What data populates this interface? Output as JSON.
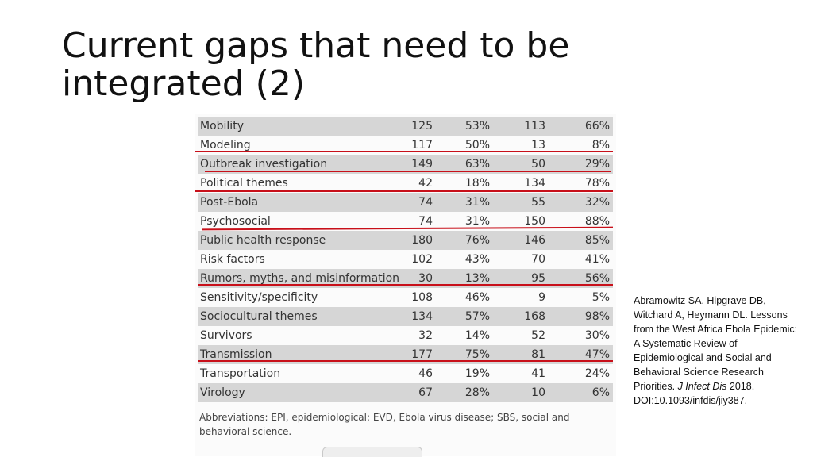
{
  "slide": {
    "title_line1": "Current gaps that need to be",
    "title_line2": "integrated (2)"
  },
  "table": {
    "rows": [
      {
        "name": "Mobility",
        "a": "125",
        "b": "53%",
        "c": "113",
        "d": "66%"
      },
      {
        "name": "Modeling",
        "a": "117",
        "b": "50%",
        "c": "13",
        "d": "8%"
      },
      {
        "name": "Outbreak investigation",
        "a": "149",
        "b": "63%",
        "c": "50",
        "d": "29%"
      },
      {
        "name": "Political themes",
        "a": "42",
        "b": "18%",
        "c": "134",
        "d": "78%"
      },
      {
        "name": "Post-Ebola",
        "a": "74",
        "b": "31%",
        "c": "55",
        "d": "32%"
      },
      {
        "name": "Psychosocial",
        "a": "74",
        "b": "31%",
        "c": "150",
        "d": "88%"
      },
      {
        "name": "Public health response",
        "a": "180",
        "b": "76%",
        "c": "146",
        "d": "85%"
      },
      {
        "name": "Risk factors",
        "a": "102",
        "b": "43%",
        "c": "70",
        "d": "41%"
      },
      {
        "name": "Rumors, myths, and misinformation",
        "a": "30",
        "b": "13%",
        "c": "95",
        "d": "56%"
      },
      {
        "name": "Sensitivity/specificity",
        "a": "108",
        "b": "46%",
        "c": "9",
        "d": "5%"
      },
      {
        "name": "Sociocultural themes",
        "a": "134",
        "b": "57%",
        "c": "168",
        "d": "98%"
      },
      {
        "name": "Survivors",
        "a": "32",
        "b": "14%",
        "c": "52",
        "d": "30%"
      },
      {
        "name": "Transmission",
        "a": "177",
        "b": "75%",
        "c": "81",
        "d": "47%"
      },
      {
        "name": "Transportation",
        "a": "46",
        "b": "19%",
        "c": "41",
        "d": "24%"
      },
      {
        "name": "Virology",
        "a": "67",
        "b": "28%",
        "c": "10",
        "d": "6%"
      }
    ],
    "footnote": "Abbreviations: EPI, epidemiological; EVD, Ebola virus disease; SBS, social and behavioral science."
  },
  "citation": {
    "text": "Abramowitz SA, Hipgrave DB, Witchard A, Heymann DL. Lessons from the West Africa Ebola Epidemic: A Systematic Review of Epidemiological and Social and Behavioral Science Research Priorities.",
    "journal": "J Infect Dis",
    "details": "2018. DOI:10.1093/infdis/jiy387."
  },
  "colors": {
    "underline_red": "#c8101a",
    "underline_blue": "#5b8fc9",
    "row_shade": "#d6d6d6"
  }
}
